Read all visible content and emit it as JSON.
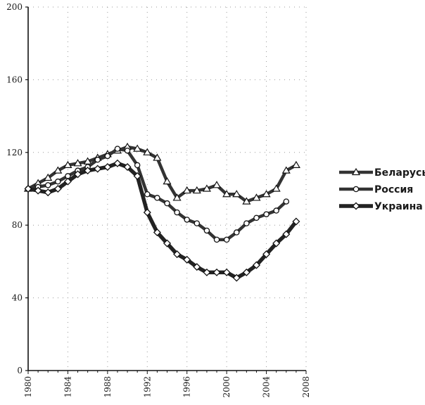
{
  "chart_data": {
    "type": "line",
    "title": "",
    "xlabel": "",
    "ylabel": "",
    "xlim": [
      1980,
      2008
    ],
    "ylim": [
      0,
      200
    ],
    "x_ticks": [
      1980,
      1984,
      1988,
      1992,
      1996,
      2000,
      2004,
      2008
    ],
    "y_ticks": [
      0,
      40,
      80,
      120,
      160,
      200
    ],
    "grid": "dotted",
    "legend_position": "right",
    "series": [
      {
        "name": "Беларусь",
        "marker": "triangle",
        "color": "#333333",
        "x": [
          1980,
          1981,
          1982,
          1983,
          1984,
          1985,
          1986,
          1987,
          1988,
          1989,
          1990,
          1991,
          1992,
          1993,
          1994,
          1995,
          1996,
          1997,
          1998,
          1999,
          2000,
          2001,
          2002,
          2003,
          2004,
          2005,
          2006,
          2007
        ],
        "values": [
          100,
          103,
          106,
          110,
          113,
          114,
          115,
          117,
          119,
          121,
          123,
          122,
          120,
          117,
          104,
          95,
          99,
          99,
          100,
          102,
          97,
          97,
          93,
          95,
          97,
          100,
          110,
          113
        ]
      },
      {
        "name": "Россия",
        "marker": "circle",
        "color": "#333333",
        "x": [
          1980,
          1981,
          1982,
          1983,
          1984,
          1985,
          1986,
          1987,
          1988,
          1989,
          1990,
          1991,
          1992,
          1993,
          1994,
          1995,
          1996,
          1997,
          1998,
          1999,
          2000,
          2001,
          2002,
          2003,
          2004,
          2005,
          2006
        ],
        "values": [
          100,
          101,
          102,
          104,
          107,
          110,
          112,
          116,
          118,
          122,
          121,
          113,
          97,
          95,
          92,
          87,
          83,
          81,
          77,
          72,
          72,
          76,
          81,
          84,
          86,
          88,
          93
        ]
      },
      {
        "name": "Украина",
        "marker": "diamond",
        "color": "#222222",
        "x": [
          1980,
          1981,
          1982,
          1983,
          1984,
          1985,
          1986,
          1987,
          1988,
          1989,
          1990,
          1991,
          1992,
          1993,
          1994,
          1995,
          1996,
          1997,
          1998,
          1999,
          2000,
          2001,
          2002,
          2003,
          2004,
          2005,
          2006,
          2007
        ],
        "values": [
          100,
          99,
          98,
          100,
          104,
          108,
          110,
          111,
          112,
          114,
          112,
          107,
          87,
          76,
          70,
          64,
          61,
          57,
          54,
          54,
          54,
          51,
          54,
          58,
          64,
          70,
          75,
          82
        ]
      }
    ]
  }
}
